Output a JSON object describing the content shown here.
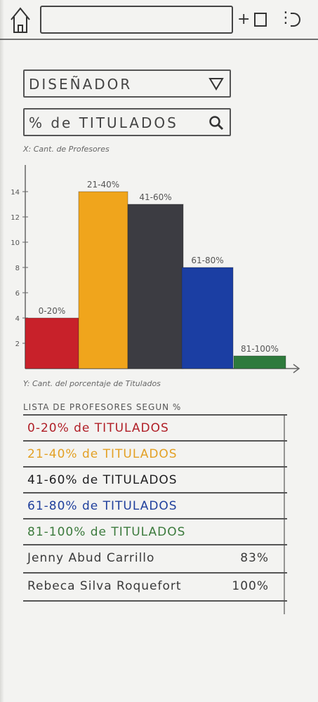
{
  "browser": {
    "icons": [
      "home-icon",
      "plus-icon",
      "new-tab-icon",
      "more-icon",
      "refresh-icon"
    ],
    "url": ""
  },
  "filters": {
    "role": {
      "value": "DISEÑADOR",
      "icon": "chevron-down-icon"
    },
    "metric": {
      "value": "% de TITULADOS",
      "icon": "search-icon"
    }
  },
  "chart_labels": {
    "x_note": "X: Cant. de Profesores",
    "y_note": "Y: Cant. del porcentaje de Titulados"
  },
  "chart_data": {
    "type": "bar",
    "categories": [
      "0-20%",
      "21-40%",
      "41-60%",
      "61-80%",
      "81-100%"
    ],
    "values": [
      4,
      14,
      13,
      8,
      1
    ],
    "yticks": [
      2,
      4,
      6,
      8,
      10,
      12,
      14
    ],
    "ylim": [
      0,
      15
    ],
    "colors": [
      "#c8212a",
      "#f0a51c",
      "#3c3c42",
      "#1b3ea3",
      "#2e7a3c"
    ],
    "grid": false
  },
  "list": {
    "title": "LISTA DE PROFESORES SEGUN %",
    "rows": [
      {
        "text": "0-20% de TITULADOS",
        "color": "#b01e26"
      },
      {
        "text": "21-40% de TITULADOS",
        "color": "#e3a024"
      },
      {
        "text": "41-60% de TITULADOS",
        "color": "#1d1d1f"
      },
      {
        "text": "61-80% de TITULADOS",
        "color": "#1f3f9c"
      },
      {
        "text": "81-100% de TITULADOS",
        "color": "#3b7a3c"
      }
    ],
    "people": [
      {
        "name": "Jenny Abud Carrillo",
        "pct": "83%"
      },
      {
        "name": "Rebeca Silva Roquefort",
        "pct": "100%"
      }
    ]
  }
}
